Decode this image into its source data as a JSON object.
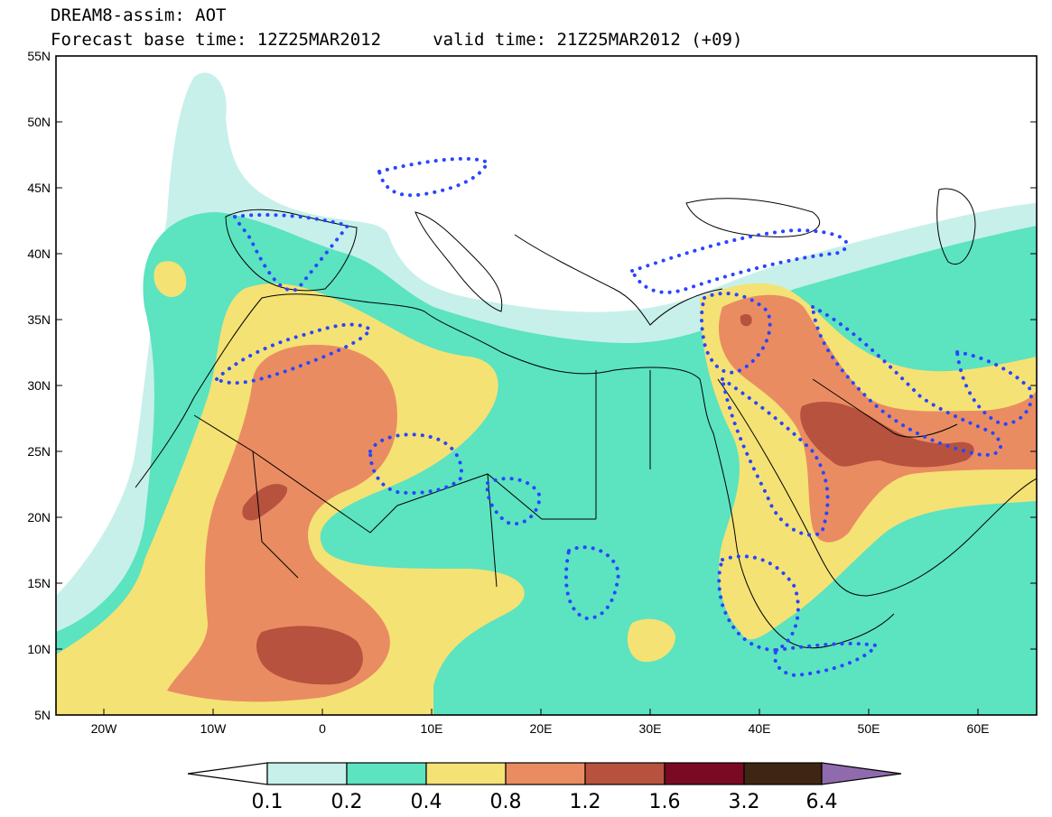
{
  "header": {
    "line1": "DREAM8-assim: AOT",
    "line2": "Forecast base time: 12Z25MAR2012     valid time: 21Z25MAR2012 (+09)"
  },
  "axes": {
    "y_labels": [
      "55N",
      "50N",
      "45N",
      "40N",
      "35N",
      "30N",
      "25N",
      "20N",
      "15N",
      "10N",
      "5N"
    ],
    "x_labels": [
      "20W",
      "10W",
      "0",
      "10E",
      "20E",
      "30E",
      "40E",
      "50E",
      "60E"
    ]
  },
  "colorbar": {
    "labels": [
      "0.1",
      "0.2",
      "0.4",
      "0.8",
      "1.2",
      "1.6",
      "3.2",
      "6.4"
    ],
    "colors": [
      "#ffffff",
      "#c7f0ea",
      "#5ce3c0",
      "#f5e274",
      "#ea8c62",
      "#b7523f",
      "#7a0a23",
      "#3f2513",
      "#8f6bad"
    ]
  },
  "colors": {
    "coastline": "#000000",
    "dotted_contour": "#2a45ff"
  }
}
